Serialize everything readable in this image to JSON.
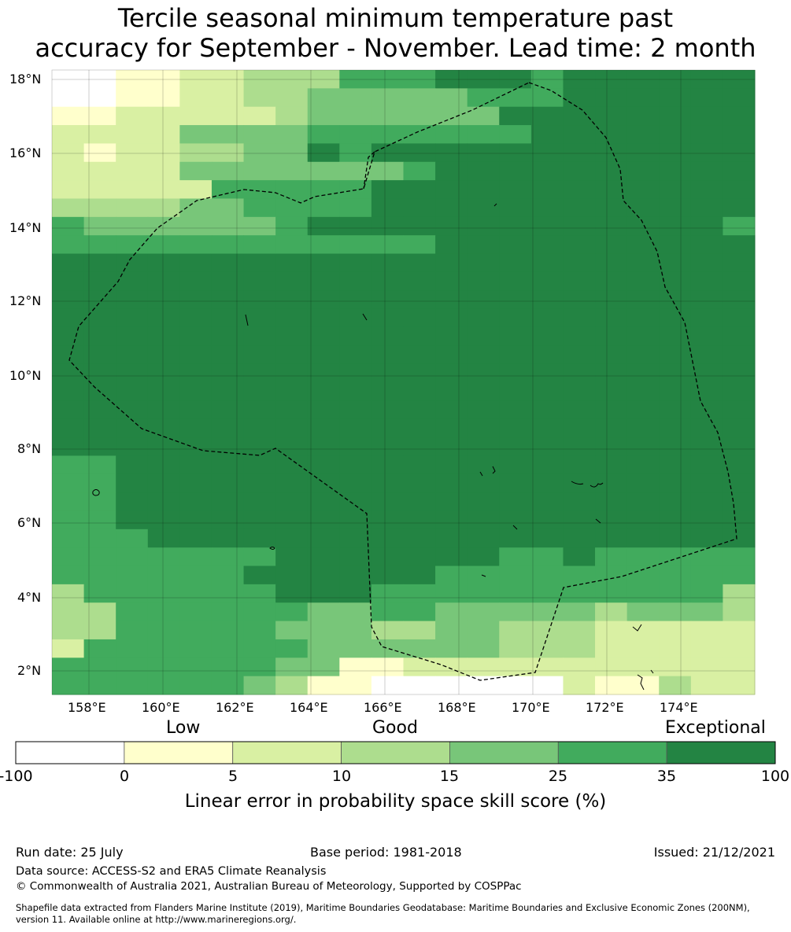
{
  "title": {
    "line1": "Tercile seasonal minimum temperature past",
    "line2": "accuracy for September - November. Lead time: 2 month"
  },
  "map": {
    "lat_labels": [
      "18°N",
      "16°N",
      "14°N",
      "12°N",
      "10°N",
      "8°N",
      "6°N",
      "4°N",
      "2°N"
    ],
    "lon_labels": [
      "158°E",
      "160°E",
      "162°E",
      "164°E",
      "166°E",
      "168°E",
      "170°E",
      "172°E",
      "174°E"
    ],
    "grid_colors": {
      "0": "#ffffff",
      "1": "#ffffcc",
      "2": "#d9f0a3",
      "3": "#addd8e",
      "4": "#78c679",
      "5": "#41ab5d",
      "6": "#238443"
    },
    "grid_rows": [
      "0011223335556665666666",
      "0011223344444555666666",
      "1122222344444466666666",
      "2222444455555556666666",
      "2122334465666666666666",
      "2222444444456666666666",
      "2222255555666666666666",
      "3333445555666666666666",
      "5444444566666666666665",
      "5555555555556666666666",
      "6666666666666666666666",
      "6666666666666666666666",
      "6666666666666666666666",
      "6666666666666666666666",
      "6666666666666666666666",
      "6666666666666666666666",
      "6666666666666666666666",
      "6666666666666666666666",
      "6666666666666666666666",
      "6666666666666666666666",
      "6666666666666666666666",
      "5566666666666666666666",
      "5566666666666666666666",
      "5566666666666666666666",
      "5566666666666666666666",
      "5556666666666666666666",
      "5555555666666655655555",
      "5555556666665555555555",
      "3555555666555555555553",
      "3355555544554444434443",
      "3355555444334433322222",
      "2555555544444433322222",
      "5555555441122222222222",
      "5555554311000000211322"
    ]
  },
  "colorbar": {
    "words": [
      "Low",
      "Good",
      "Exceptional"
    ],
    "ticks": [
      "-100",
      "0",
      "5",
      "10",
      "15",
      "25",
      "35",
      "100"
    ],
    "colors": [
      "#ffffff",
      "#ffffcc",
      "#d9f0a3",
      "#addd8e",
      "#78c679",
      "#41ab5d",
      "#238443"
    ],
    "label": "Linear error in probability space skill score (%)"
  },
  "footer": {
    "run_date": "Run date: 25 July",
    "base_period": "Base period: 1981-2018",
    "issued": "Issued: 21/12/2021",
    "data_source": "Data source: ACCESS-S2 and ERA5 Climate Reanalysis",
    "copyright": "© Commonwealth of Australia 2021, Australian Bureau of Meteorology, Supported by COSPPac",
    "shapefile_line1": "Shapefile data extracted from Flanders Marine Institute (2019), Maritime Boundaries Geodatabase: Maritime Boundaries and Exclusive Economic Zones (200NM),",
    "shapefile_line2": "version 11. Available online at http://www.marineregions.org/."
  }
}
